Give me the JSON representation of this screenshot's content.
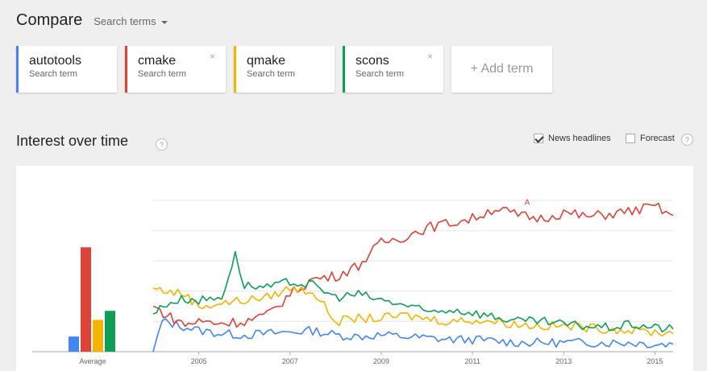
{
  "header": {
    "title": "Compare",
    "search_terms_label": "Search terms"
  },
  "terms": [
    {
      "name": "autotools",
      "sub": "Search term",
      "color": "#4285f4",
      "removable": false
    },
    {
      "name": "cmake",
      "sub": "Search term",
      "color": "#db4437",
      "removable": true
    },
    {
      "name": "qmake",
      "sub": "Search term",
      "color": "#f4b400",
      "removable": false
    },
    {
      "name": "scons",
      "sub": "Search term",
      "color": "#0f9d58",
      "removable": true
    }
  ],
  "close_glyph": "×",
  "add_term_label": "+ Add term",
  "section": {
    "title": "Interest over time",
    "help": "?"
  },
  "options": {
    "news_label": "News headlines",
    "news_checked": true,
    "forecast_label": "Forecast",
    "forecast_checked": false
  },
  "chart_data": {
    "type": "line",
    "average_label": "Average",
    "averages": [
      {
        "name": "autotools",
        "value": 10,
        "color": "#4285f4"
      },
      {
        "name": "cmake",
        "value": 69,
        "color": "#db4437"
      },
      {
        "name": "qmake",
        "value": 21,
        "color": "#f4b400"
      },
      {
        "name": "scons",
        "value": 27,
        "color": "#0f9d58"
      }
    ],
    "x_ticks": [
      "2005",
      "2007",
      "2009",
      "2011",
      "2013",
      "2015"
    ],
    "x_range": [
      2004.0,
      2015.4
    ],
    "y_range": [
      0,
      100
    ],
    "grid": true,
    "annotation": {
      "label": "A",
      "x": 2012.2,
      "y": 96
    },
    "series": [
      {
        "name": "autotools",
        "color": "#4285f4",
        "points": [
          [
            2004.0,
            0
          ],
          [
            2004.2,
            20
          ],
          [
            2004.5,
            18
          ],
          [
            2005,
            14
          ],
          [
            2005.5,
            12
          ],
          [
            2006,
            11
          ],
          [
            2006.5,
            12
          ],
          [
            2007,
            13
          ],
          [
            2007.5,
            14
          ],
          [
            2008,
            11
          ],
          [
            2008.5,
            10
          ],
          [
            2009,
            11
          ],
          [
            2009.5,
            10
          ],
          [
            2010,
            9
          ],
          [
            2010.5,
            8
          ],
          [
            2011,
            8
          ],
          [
            2011.5,
            7
          ],
          [
            2012,
            6
          ],
          [
            2012.5,
            6
          ],
          [
            2013,
            6
          ],
          [
            2013.5,
            6
          ],
          [
            2014,
            6
          ],
          [
            2014.5,
            6
          ],
          [
            2015,
            5
          ],
          [
            2015.4,
            5
          ]
        ]
      },
      {
        "name": "cmake",
        "color": "#db4437",
        "points": [
          [
            2004.0,
            30
          ],
          [
            2004.3,
            24
          ],
          [
            2004.7,
            18
          ],
          [
            2005,
            20
          ],
          [
            2005.5,
            19
          ],
          [
            2006,
            20
          ],
          [
            2006.5,
            24
          ],
          [
            2007,
            38
          ],
          [
            2007.5,
            48
          ],
          [
            2008,
            50
          ],
          [
            2008.5,
            57
          ],
          [
            2009,
            72
          ],
          [
            2009.5,
            76
          ],
          [
            2010,
            82
          ],
          [
            2010.5,
            85
          ],
          [
            2011,
            88
          ],
          [
            2011.5,
            95
          ],
          [
            2012,
            90
          ],
          [
            2012.5,
            88
          ],
          [
            2013,
            92
          ],
          [
            2013.5,
            89
          ],
          [
            2014,
            91
          ],
          [
            2014.5,
            93
          ],
          [
            2015,
            96
          ],
          [
            2015.4,
            90
          ]
        ]
      },
      {
        "name": "qmake",
        "color": "#f4b400",
        "points": [
          [
            2004.0,
            42
          ],
          [
            2004.3,
            40
          ],
          [
            2004.7,
            38
          ],
          [
            2005,
            30
          ],
          [
            2005.5,
            32
          ],
          [
            2006,
            34
          ],
          [
            2006.5,
            36
          ],
          [
            2007,
            42
          ],
          [
            2007.5,
            40
          ],
          [
            2008,
            20
          ],
          [
            2008.5,
            22
          ],
          [
            2009,
            22
          ],
          [
            2009.5,
            24
          ],
          [
            2010,
            22
          ],
          [
            2010.5,
            20
          ],
          [
            2011,
            21
          ],
          [
            2011.5,
            20
          ],
          [
            2012,
            18
          ],
          [
            2012.5,
            17
          ],
          [
            2013,
            17
          ],
          [
            2013.5,
            16
          ],
          [
            2014,
            15
          ],
          [
            2014.5,
            14
          ],
          [
            2015,
            13
          ],
          [
            2015.4,
            12
          ]
        ]
      },
      {
        "name": "scons",
        "color": "#0f9d58",
        "points": [
          [
            2004.0,
            25
          ],
          [
            2004.3,
            32
          ],
          [
            2004.7,
            35
          ],
          [
            2005,
            34
          ],
          [
            2005.5,
            36
          ],
          [
            2005.8,
            64
          ],
          [
            2006,
            44
          ],
          [
            2006.5,
            42
          ],
          [
            2007,
            46
          ],
          [
            2007.5,
            44
          ],
          [
            2008,
            36
          ],
          [
            2008.5,
            38
          ],
          [
            2009,
            34
          ],
          [
            2009.5,
            31
          ],
          [
            2010,
            26
          ],
          [
            2010.5,
            28
          ],
          [
            2011,
            26
          ],
          [
            2011.5,
            23
          ],
          [
            2012,
            20
          ],
          [
            2012.5,
            20
          ],
          [
            2013,
            18
          ],
          [
            2013.5,
            17
          ],
          [
            2014,
            16
          ],
          [
            2014.5,
            18
          ],
          [
            2015,
            16
          ],
          [
            2015.4,
            15
          ]
        ]
      }
    ]
  }
}
